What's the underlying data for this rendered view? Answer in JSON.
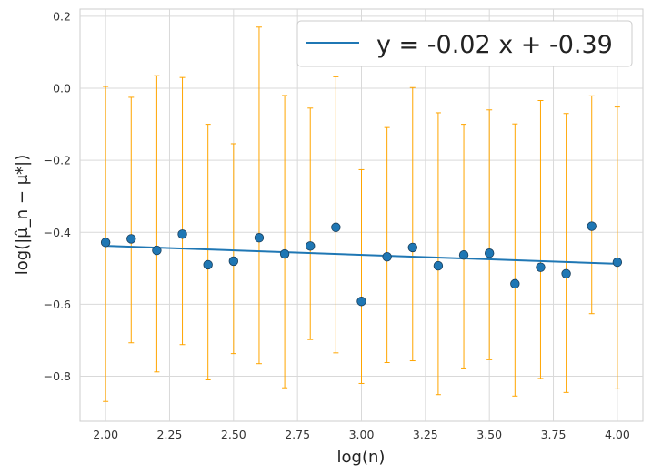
{
  "chart_data": {
    "type": "scatter",
    "xlabel": "log(n)",
    "ylabel": "log(|μ̂_n − μ*|)",
    "xlim": [
      1.9,
      4.1
    ],
    "ylim": [
      -0.925,
      0.22
    ],
    "grid": true,
    "legend_placement": "top-right",
    "xticks": [
      2.0,
      2.25,
      2.5,
      2.75,
      3.0,
      3.25,
      3.5,
      3.75,
      4.0
    ],
    "xtick_labels": [
      "2.00",
      "2.25",
      "2.50",
      "2.75",
      "3.00",
      "3.25",
      "3.50",
      "3.75",
      "4.00"
    ],
    "yticks": [
      0.2,
      0.0,
      -0.2,
      -0.4,
      -0.6,
      -0.8
    ],
    "ytick_labels": [
      "0.2",
      "0.0",
      "−0.2",
      "−0.4",
      "−0.6",
      "−0.8"
    ],
    "points": {
      "x": [
        2.0,
        2.1,
        2.2,
        2.3,
        2.4,
        2.5,
        2.6,
        2.7,
        2.8,
        2.9,
        3.0,
        3.1,
        3.2,
        3.3,
        3.4,
        3.5,
        3.6,
        3.7,
        3.8,
        3.9,
        4.0
      ],
      "y": [
        -0.428,
        -0.418,
        -0.45,
        -0.405,
        -0.49,
        -0.48,
        -0.415,
        -0.46,
        -0.438,
        -0.386,
        -0.592,
        -0.468,
        -0.442,
        -0.493,
        -0.463,
        -0.458,
        -0.543,
        -0.497,
        -0.515,
        -0.383,
        -0.483
      ],
      "err_low": [
        -0.87,
        -0.707,
        -0.788,
        -0.712,
        -0.81,
        -0.737,
        -0.765,
        -0.832,
        -0.698,
        -0.735,
        -0.82,
        -0.762,
        -0.757,
        -0.851,
        -0.777,
        -0.754,
        -0.855,
        -0.806,
        -0.845,
        -0.626,
        -0.835
      ],
      "err_high": [
        0.005,
        -0.025,
        0.035,
        0.03,
        -0.1,
        -0.154,
        0.17,
        -0.02,
        -0.055,
        0.032,
        -0.226,
        -0.109,
        0.002,
        -0.068,
        -0.1,
        -0.06,
        -0.099,
        -0.034,
        -0.07,
        -0.021,
        -0.052
      ]
    },
    "fit_line": {
      "name": "y = -0.02 x + -0.39",
      "slope": -0.025,
      "intercept": -0.3875,
      "x_range": [
        2.0,
        4.0
      ]
    },
    "colors": {
      "points": "#1f77b4",
      "fit_line": "#1f77b4",
      "error_bars": "#ffa500",
      "grid": "#d9d9d9",
      "plot_background": "#ffffff"
    }
  }
}
